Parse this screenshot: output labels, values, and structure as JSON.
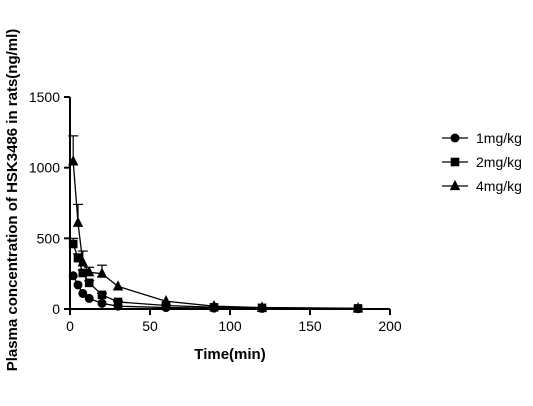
{
  "chart_data": {
    "type": "line",
    "xlabel": "Time(min)",
    "ylabel": "Plasma concentration of HSK3486 in rats(ng/ml)",
    "xlim": [
      0,
      200
    ],
    "ylim": [
      0,
      1500
    ],
    "xticks": [
      0,
      50,
      100,
      150,
      200
    ],
    "yticks": [
      0,
      500,
      1000,
      1500
    ],
    "legend_position": "right",
    "series": [
      {
        "name": "1mg/kg",
        "marker": "circle",
        "x": [
          2,
          5,
          8,
          12,
          20,
          30,
          60,
          90,
          120,
          180
        ],
        "y": [
          235,
          170,
          110,
          75,
          40,
          20,
          10,
          6,
          4,
          2
        ],
        "err": [
          0,
          0,
          0,
          0,
          0,
          0,
          0,
          0,
          0,
          0
        ]
      },
      {
        "name": "2mg/kg",
        "marker": "square",
        "x": [
          2,
          5,
          8,
          12,
          20,
          30,
          60,
          90,
          120,
          180
        ],
        "y": [
          460,
          360,
          255,
          185,
          100,
          50,
          25,
          12,
          8,
          4
        ],
        "err": [
          40,
          30,
          20,
          15,
          10,
          5,
          0,
          0,
          0,
          0
        ]
      },
      {
        "name": "4mg/kg",
        "marker": "triangle",
        "x": [
          2,
          5,
          8,
          12,
          20,
          30,
          60,
          90,
          120,
          180
        ],
        "y": [
          1045,
          610,
          330,
          260,
          250,
          160,
          55,
          20,
          10,
          5
        ],
        "err": [
          180,
          130,
          80,
          35,
          60,
          0,
          0,
          0,
          0,
          0
        ]
      }
    ]
  }
}
